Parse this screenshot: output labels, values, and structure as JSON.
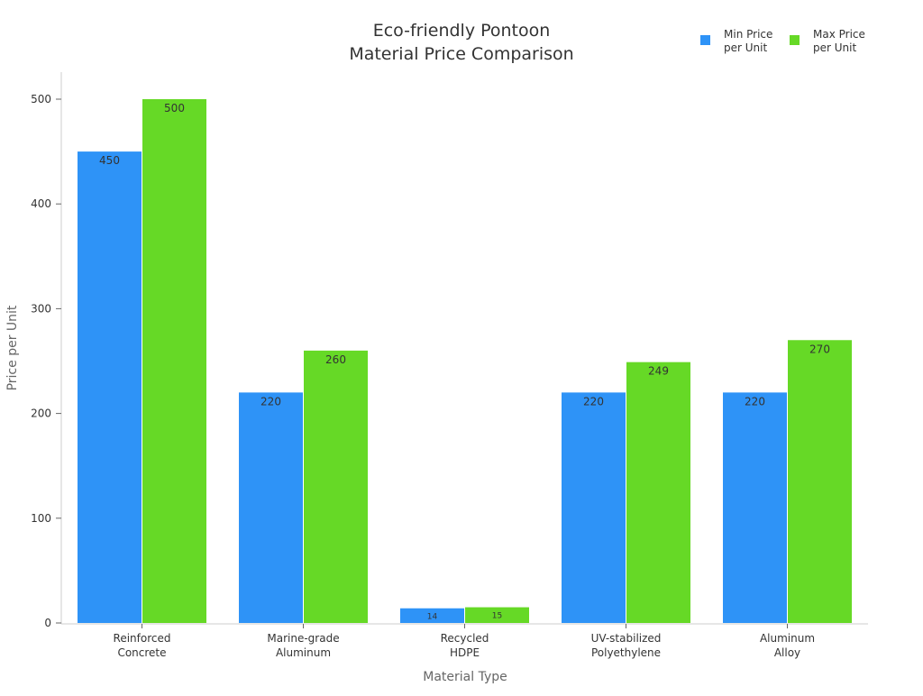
{
  "chart_data": {
    "type": "bar",
    "title_lines": [
      "Eco-friendly Pontoon",
      "Material Price Comparison"
    ],
    "xlabel": "Material Type",
    "ylabel": "Price per Unit",
    "categories": [
      [
        "Reinforced",
        "Concrete"
      ],
      [
        "Marine-grade",
        "Aluminum"
      ],
      [
        "Recycled",
        "HDPE"
      ],
      [
        "UV-stabilized",
        "Polyethylene"
      ],
      [
        "Aluminum",
        "Alloy"
      ]
    ],
    "series": [
      {
        "name_lines": [
          "Min Price",
          "per Unit"
        ],
        "color": "#2e93f7",
        "values": [
          450,
          220,
          14,
          220,
          220
        ]
      },
      {
        "name_lines": [
          "Max Price",
          "per Unit"
        ],
        "color": "#66d926",
        "values": [
          500,
          260,
          15,
          249,
          270
        ]
      }
    ],
    "ylim": [
      0,
      525
    ],
    "yticks": [
      0,
      100,
      200,
      300,
      400,
      500
    ],
    "grid": false,
    "legend_position": "top-right",
    "data_labels": true
  }
}
